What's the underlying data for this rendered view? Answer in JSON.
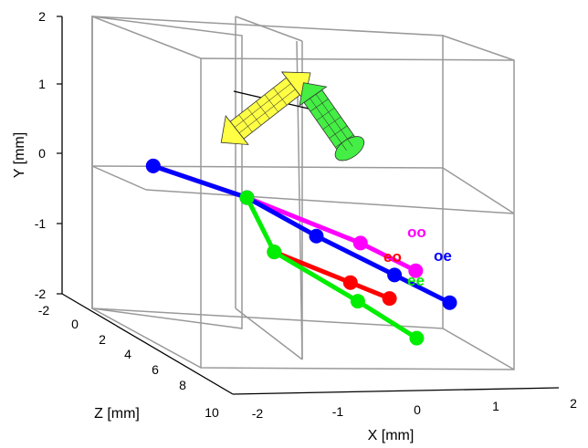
{
  "chart_data": {
    "type": "line",
    "subtype": "3d-trajectories",
    "xlabel": "X [mm]",
    "ylabel": "Y [mm]",
    "zlabel": "Z [mm]",
    "xlim": [
      -2,
      2
    ],
    "ylim": [
      -2,
      2
    ],
    "zlim": [
      -2,
      10
    ],
    "x_ticks": [
      "-2",
      "-1",
      "0",
      "1",
      "2"
    ],
    "y_ticks": [
      "-2",
      "-1",
      "0",
      "1",
      "2"
    ],
    "z_ticks": [
      "-2",
      "0",
      "2",
      "4",
      "6",
      "8",
      "10"
    ],
    "grid": true,
    "series": [
      {
        "name": "oo",
        "color": "#ff00ff",
        "points": [
          [
            -1.3,
            0.0,
            -2.0
          ],
          [
            -0.5,
            -0.2,
            0.6
          ],
          [
            0.4,
            -0.5,
            4.4
          ],
          [
            0.8,
            -0.7,
            6.6
          ]
        ]
      },
      {
        "name": "oe",
        "color": "#0000ff",
        "points": [
          [
            -1.3,
            0.0,
            -2.0
          ],
          [
            -0.5,
            -0.2,
            0.6
          ],
          [
            0.0,
            -0.5,
            3.4
          ],
          [
            0.6,
            -0.8,
            6.2
          ],
          [
            1.0,
            -1.0,
            8.4
          ]
        ]
      },
      {
        "name": "eo",
        "color": "#ff0000",
        "points": [
          [
            -0.4,
            -0.8,
            2.6
          ],
          [
            0.2,
            -1.0,
            5.2
          ],
          [
            0.5,
            -1.1,
            6.6
          ]
        ]
      },
      {
        "name": "ee",
        "color": "#00ee00",
        "points": [
          [
            -0.5,
            -0.2,
            0.6
          ],
          [
            -0.4,
            -0.8,
            2.6
          ],
          [
            0.2,
            -1.2,
            6.0
          ],
          [
            0.6,
            -1.5,
            8.6
          ]
        ]
      }
    ],
    "arrows": [
      {
        "name": "yellow-arrow",
        "color": "#ffff33"
      },
      {
        "name": "green-arrow",
        "color": "#33ee33"
      }
    ]
  }
}
